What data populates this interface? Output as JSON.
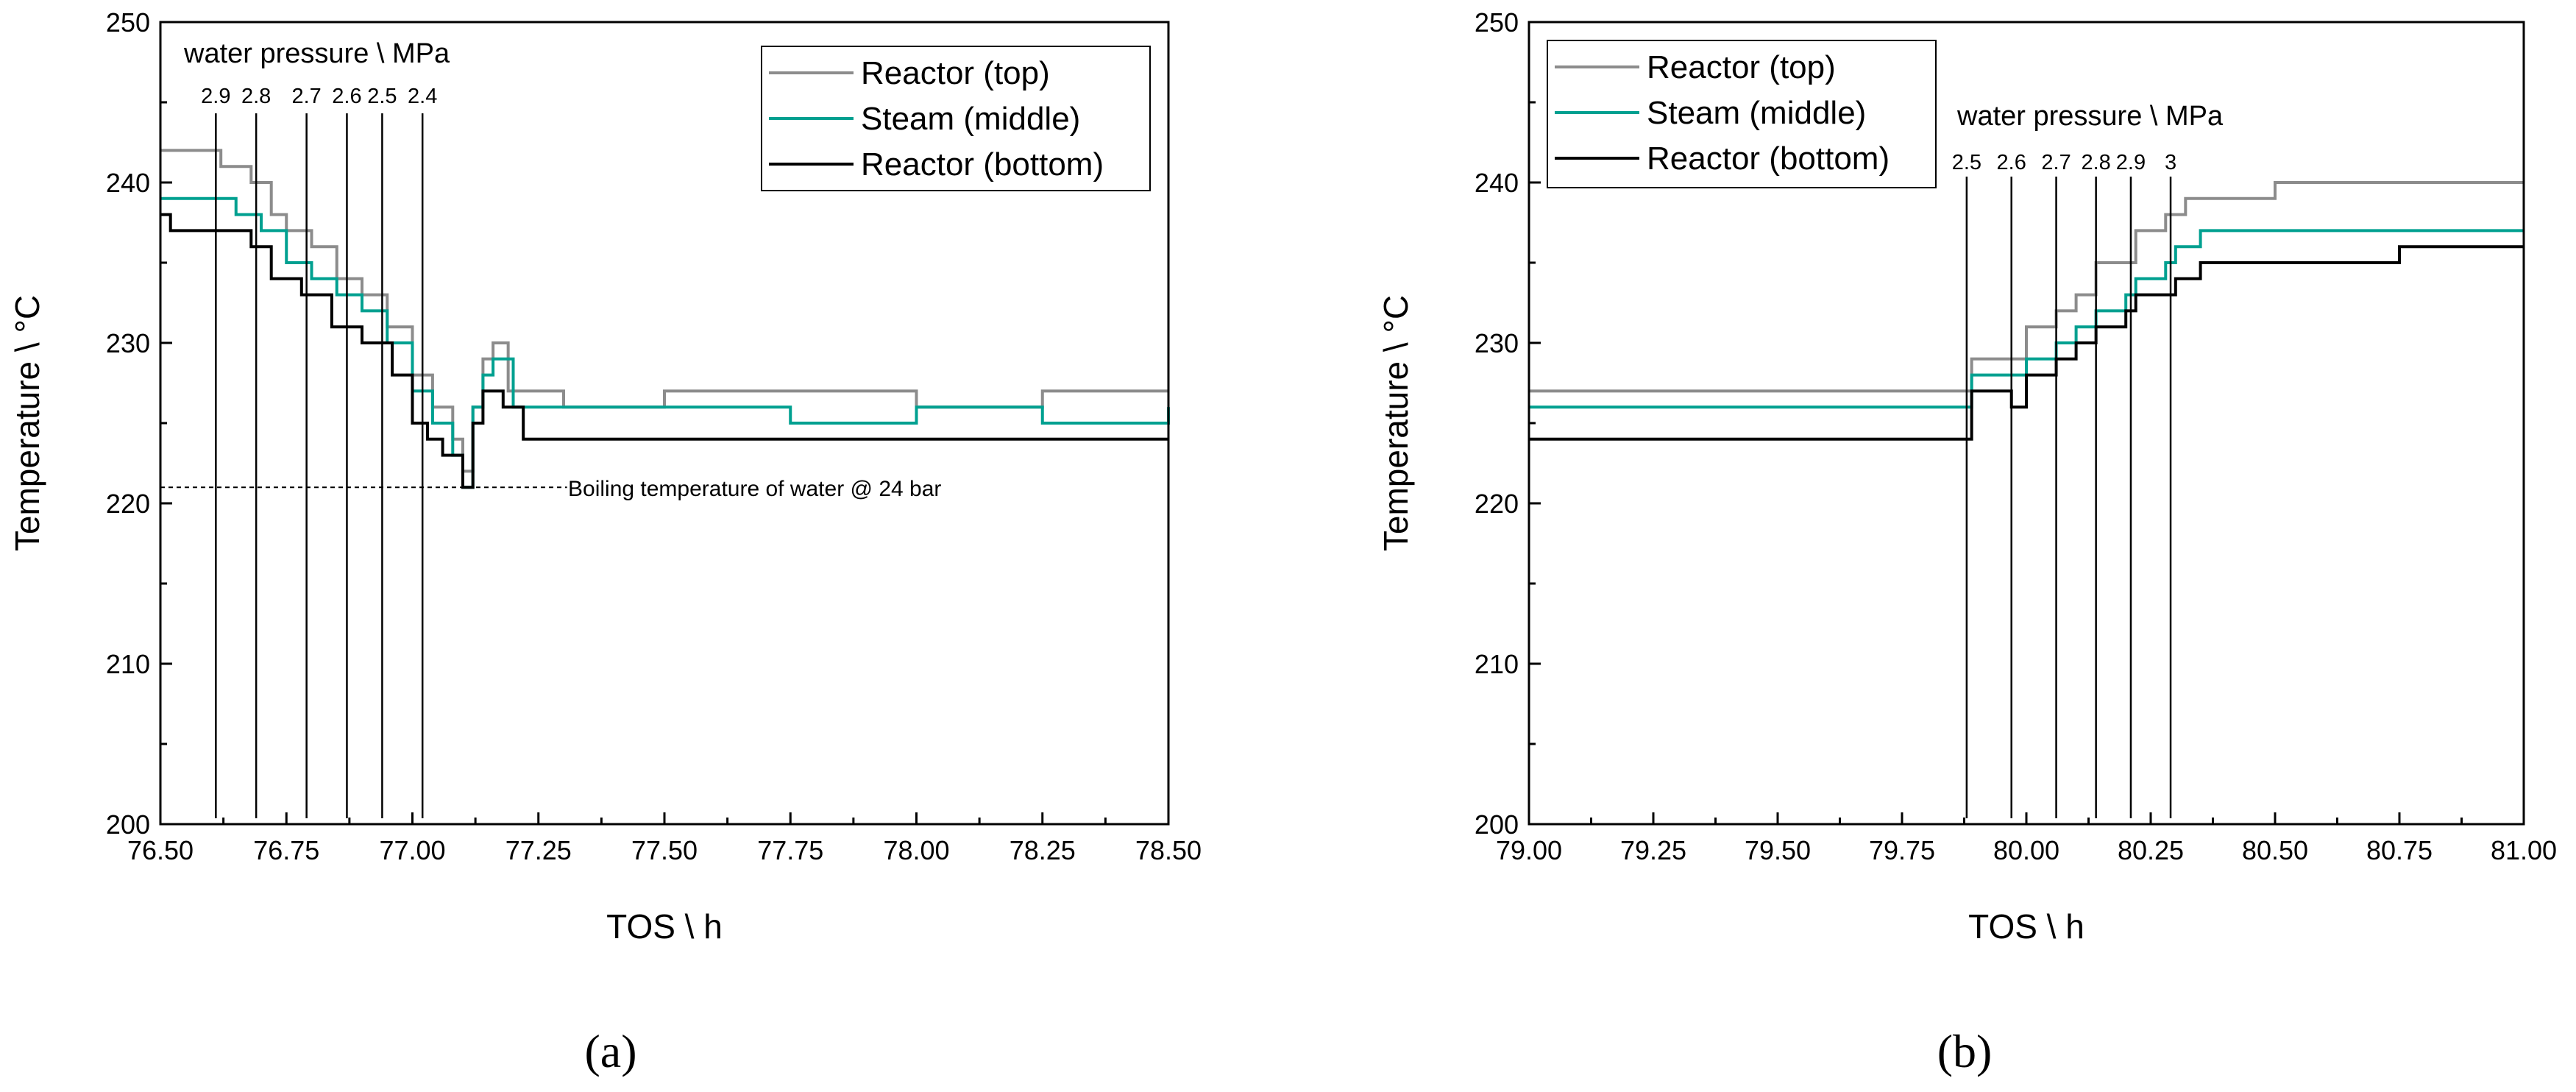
{
  "colors": {
    "reactor_top": "#8c8c8c",
    "steam_middle": "#00a090",
    "reactor_bottom": "#000000",
    "marker": "#000000",
    "boiling_line": "#000000"
  },
  "chart_data": [
    {
      "panel": "(a)",
      "type": "line",
      "xlabel": "TOS \\ h",
      "ylabel": "Temperature \\ °C",
      "xlim": [
        76.5,
        78.5
      ],
      "ylim": [
        200,
        250
      ],
      "xticks": [
        "76.50",
        "76.75",
        "77.00",
        "77.25",
        "77.50",
        "77.75",
        "78.00",
        "78.25",
        "78.50"
      ],
      "yticks": [
        "200",
        "210",
        "220",
        "230",
        "240",
        "250"
      ],
      "legend_position": "top-right",
      "grid": false,
      "annotation": "water pressure \\ MPa",
      "pressure_markers": [
        {
          "label": "2.9",
          "x": 76.61
        },
        {
          "label": "2.8",
          "x": 76.69
        },
        {
          "label": "2.7",
          "x": 76.79
        },
        {
          "label": "2.6",
          "x": 76.87
        },
        {
          "label": "2.5",
          "x": 76.94
        },
        {
          "label": "2.4",
          "x": 77.02
        }
      ],
      "reference_line": {
        "label": "Boiling temperature of water @ 24 bar",
        "y": 221,
        "x_start": 76.5,
        "x_end": 77.19
      },
      "series": [
        {
          "name": "Reactor (top)",
          "color_key": "reactor_top",
          "x": [
            76.5,
            76.62,
            76.68,
            76.72,
            76.75,
            76.8,
            76.85,
            76.9,
            76.95,
            77.0,
            77.04,
            77.08,
            77.1,
            77.12,
            77.14,
            77.16,
            77.19,
            77.3,
            77.5,
            77.75,
            78.0,
            78.25,
            78.5
          ],
          "y": [
            242,
            241,
            240,
            238,
            237,
            236,
            234,
            233,
            231,
            228,
            226,
            224,
            222,
            226,
            229,
            230,
            227,
            226,
            227,
            227,
            226,
            227,
            227
          ]
        },
        {
          "name": "Steam (middle)",
          "color_key": "steam_middle",
          "x": [
            76.5,
            76.6,
            76.65,
            76.7,
            76.75,
            76.8,
            76.85,
            76.9,
            76.95,
            77.0,
            77.04,
            77.08,
            77.1,
            77.12,
            77.14,
            77.16,
            77.2,
            77.35,
            77.5,
            77.75,
            78.0,
            78.25,
            78.5
          ],
          "y": [
            239,
            239,
            238,
            237,
            235,
            234,
            233,
            232,
            230,
            227,
            225,
            223,
            221,
            226,
            228,
            229,
            226,
            226,
            226,
            225,
            226,
            225,
            226
          ]
        },
        {
          "name": "Reactor (bottom)",
          "color_key": "reactor_bottom",
          "x": [
            76.5,
            76.52,
            76.6,
            76.68,
            76.72,
            76.78,
            76.84,
            76.9,
            76.96,
            77.0,
            77.03,
            77.06,
            77.1,
            77.12,
            77.14,
            77.18,
            77.22,
            77.5,
            78.0,
            78.5
          ],
          "y": [
            238,
            237,
            237,
            236,
            234,
            233,
            231,
            230,
            228,
            225,
            224,
            223,
            221,
            225,
            227,
            226,
            224,
            224,
            224,
            224
          ]
        }
      ]
    },
    {
      "panel": "(b)",
      "type": "line",
      "xlabel": "TOS \\ h",
      "ylabel": "Temperature \\ °C",
      "xlim": [
        79.0,
        81.0
      ],
      "ylim": [
        200,
        250
      ],
      "xticks": [
        "79.00",
        "79.25",
        "79.50",
        "79.75",
        "80.00",
        "80.25",
        "80.50",
        "80.75",
        "81.00"
      ],
      "yticks": [
        "200",
        "210",
        "220",
        "230",
        "240",
        "250"
      ],
      "legend_position": "top-left",
      "grid": false,
      "annotation": "water pressure \\ MPa",
      "pressure_markers": [
        {
          "label": "2.5",
          "x": 79.88
        },
        {
          "label": "2.6",
          "x": 79.97
        },
        {
          "label": "2.7",
          "x": 80.06
        },
        {
          "label": "2.8",
          "x": 80.14
        },
        {
          "label": "2.9",
          "x": 80.21
        },
        {
          "label": "3",
          "x": 80.29
        }
      ],
      "series": [
        {
          "name": "Reactor (top)",
          "color_key": "reactor_top",
          "x": [
            79.0,
            79.25,
            79.5,
            79.75,
            79.87,
            79.89,
            79.97,
            80.0,
            80.06,
            80.1,
            80.14,
            80.2,
            80.22,
            80.28,
            80.32,
            80.4,
            80.5,
            80.75,
            81.0
          ],
          "y": [
            227,
            227,
            227,
            227,
            227,
            229,
            229,
            231,
            232,
            233,
            235,
            235,
            237,
            238,
            239,
            239,
            240,
            240,
            240
          ]
        },
        {
          "name": "Steam (middle)",
          "color_key": "steam_middle",
          "x": [
            79.0,
            79.25,
            79.5,
            79.75,
            79.87,
            79.89,
            79.97,
            80.0,
            80.06,
            80.1,
            80.14,
            80.2,
            80.22,
            80.28,
            80.3,
            80.35,
            80.5,
            80.75,
            81.0
          ],
          "y": [
            226,
            226,
            226,
            226,
            226,
            228,
            228,
            229,
            230,
            231,
            232,
            233,
            234,
            235,
            236,
            237,
            237,
            237,
            237
          ]
        },
        {
          "name": "Reactor (bottom)",
          "color_key": "reactor_bottom",
          "x": [
            79.0,
            79.25,
            79.5,
            79.75,
            79.87,
            79.89,
            79.97,
            80.0,
            80.06,
            80.1,
            80.14,
            80.2,
            80.22,
            80.28,
            80.3,
            80.35,
            80.5,
            80.75,
            81.0
          ],
          "y": [
            224,
            224,
            224,
            224,
            224,
            227,
            226,
            228,
            229,
            230,
            231,
            232,
            233,
            233,
            234,
            235,
            235,
            236,
            236
          ]
        }
      ]
    }
  ]
}
